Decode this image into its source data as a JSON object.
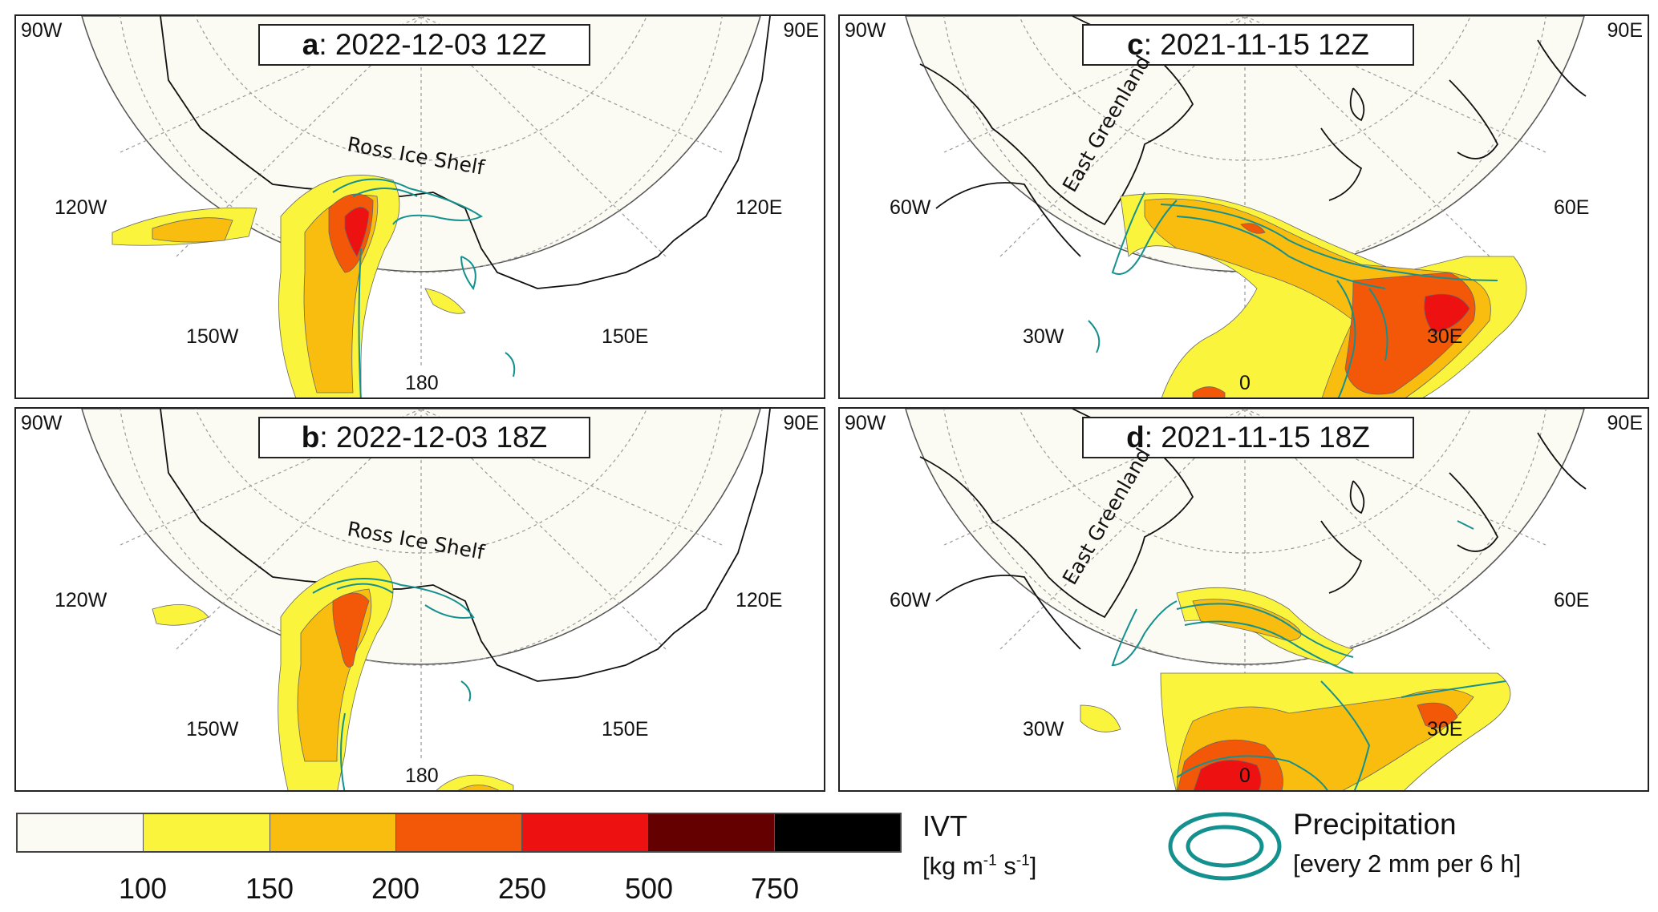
{
  "panels": [
    {
      "letter": "a",
      "title": ": 2022-12-03 12Z",
      "corner_left": "90W",
      "corner_right": "90E",
      "left_mid": "120W",
      "right_mid": "120E",
      "left_low": "150W",
      "right_low": "150E",
      "bottom": "180",
      "place": "Ross Ice Shelf"
    },
    {
      "letter": "b",
      "title": ": 2022-12-03 18Z",
      "corner_left": "90W",
      "corner_right": "90E",
      "left_mid": "120W",
      "right_mid": "120E",
      "left_low": "150W",
      "right_low": "150E",
      "bottom": "180",
      "place": "Ross Ice Shelf"
    },
    {
      "letter": "c",
      "title": ": 2021-11-15 12Z",
      "corner_left": "90W",
      "corner_right": "90E",
      "left_mid": "60W",
      "right_mid": "60E",
      "left_low": "30W",
      "right_low": "30E",
      "bottom": "0",
      "place": "East Greenland"
    },
    {
      "letter": "d",
      "title": ": 2021-11-15 18Z",
      "corner_left": "90W",
      "corner_right": "90E",
      "left_mid": "60W",
      "right_mid": "60E",
      "left_low": "30W",
      "right_low": "30E",
      "bottom": "0",
      "place": "East Greenland"
    }
  ],
  "legend": {
    "ivt_title": "IVT",
    "ivt_units_main": "[kg m",
    "ivt_units_exp1": "-1",
    "ivt_units_mid": " s",
    "ivt_units_exp2": "-1",
    "ivt_units_end": "]",
    "colors": [
      "#fbfbf3",
      "#fbf43d",
      "#f8bd0e",
      "#f25808",
      "#ee1111",
      "#650000",
      "#000000"
    ],
    "ticks": [
      "100",
      "150",
      "200",
      "250",
      "500",
      "750"
    ],
    "precip_title": "Precipitation",
    "precip_desc": "[every 2 mm per 6 h]",
    "precip_color": "#14918f"
  }
}
